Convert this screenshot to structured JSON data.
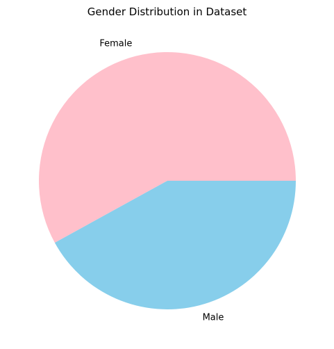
{
  "chart_data": {
    "type": "pie",
    "title": "Gender Distribution in Dataset",
    "labels": [
      "Female",
      "Male"
    ],
    "values": [
      58,
      42
    ],
    "colors": [
      "#ffc0cb",
      "#87ceeb"
    ],
    "start_angle_deg": 0,
    "direction": "counterclockwise"
  }
}
